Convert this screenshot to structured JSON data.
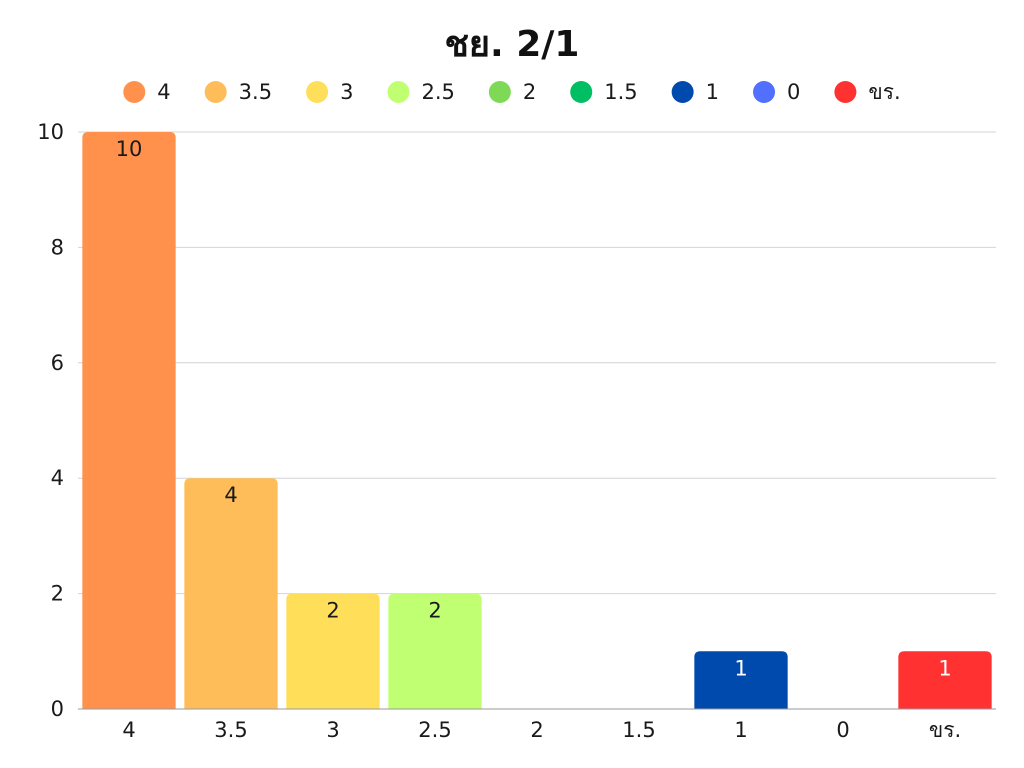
{
  "chart_data": {
    "type": "bar",
    "title": "ชย. 2/1",
    "xlabel": "",
    "ylabel": "",
    "categories": [
      "4",
      "3.5",
      "3",
      "2.5",
      "2",
      "1.5",
      "1",
      "0",
      "ขร."
    ],
    "values": [
      10,
      4,
      2,
      2,
      0,
      0,
      1,
      0,
      1
    ],
    "colors": [
      "#FF914D",
      "#FFBD59",
      "#FFDE59",
      "#C1FF72",
      "#7ED957",
      "#00BF63",
      "#004AAD",
      "#5170FF",
      "#FF3131"
    ],
    "label_colors": [
      "#1a1a1a",
      "#1a1a1a",
      "#1a1a1a",
      "#1a1a1a",
      "#1a1a1a",
      "#1a1a1a",
      "#ffffff",
      "#ffffff",
      "#ffffff"
    ],
    "ylim": [
      0,
      10
    ],
    "yticks": [
      0,
      2,
      4,
      6,
      8,
      10
    ],
    "grid": true,
    "legend_position": "top"
  }
}
